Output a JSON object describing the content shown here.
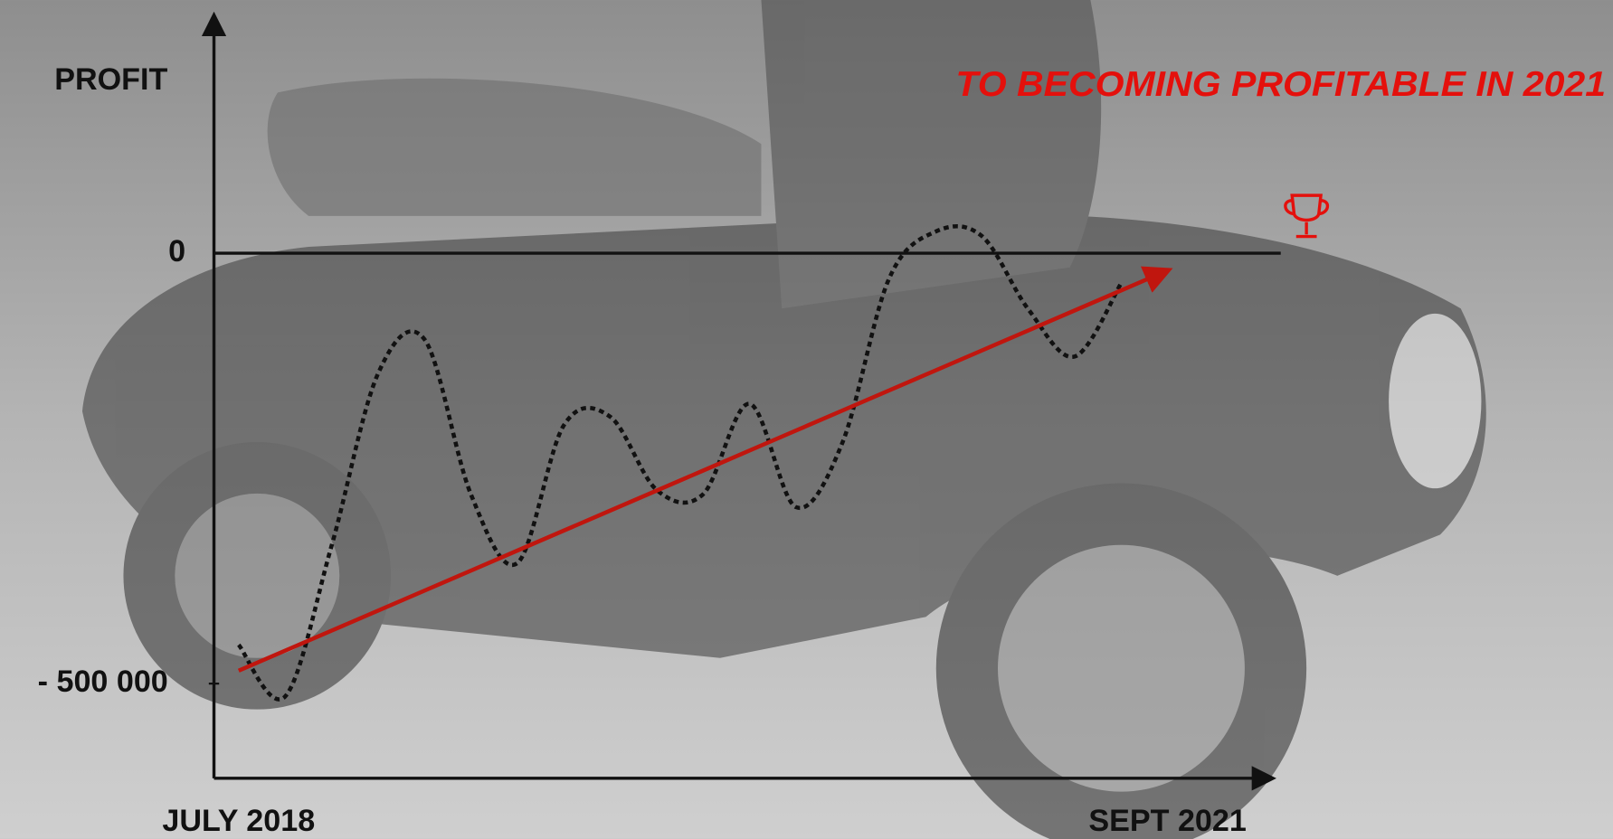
{
  "chart_data": {
    "type": "line",
    "y_label": "PROFIT",
    "annotation": "TO BECOMING PROFITABLE IN 2021",
    "annotation_color": "#e4100c",
    "categories": [
      "JULY 2018",
      null,
      null,
      null,
      null,
      null,
      null,
      null,
      null,
      null,
      null,
      null,
      null,
      null,
      null,
      null,
      null,
      null,
      null,
      null,
      "SEPT 2021"
    ],
    "series": [
      {
        "color": "#111111",
        "style": "dotted",
        "values": [
          -455000,
          -515000,
          -340000,
          -140000,
          -100000,
          -280000,
          -360000,
          -200000,
          -190000,
          -275000,
          -280000,
          -175000,
          -295000,
          -220000,
          -30000,
          25000,
          20000,
          -65000,
          -120000,
          -35000,
          null
        ]
      },
      {
        "color": "#c0160e",
        "style": "arrow",
        "values": [
          -485000,
          -461750,
          -438500,
          -415250,
          -392000,
          -368750,
          -345500,
          -322250,
          -299000,
          -275750,
          -252500,
          -229250,
          -206000,
          -182750,
          -159500,
          -136250,
          -113000,
          -89750,
          -66500,
          -43250,
          -20000
        ]
      }
    ],
    "ylim": [
      -610000,
      275000
    ],
    "yticks": [
      0,
      {
        "value": -500000,
        "label": "- 500 000"
      }
    ]
  }
}
